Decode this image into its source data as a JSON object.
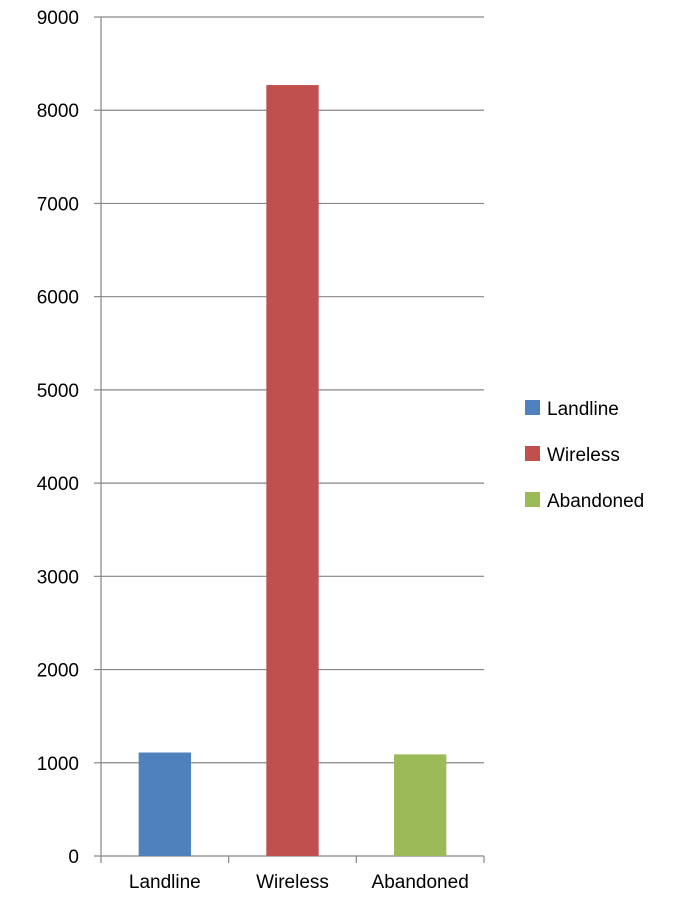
{
  "chart_data": {
    "type": "bar",
    "categories": [
      "Landline",
      "Wireless",
      "Abandoned"
    ],
    "values": [
      1110,
      8270,
      1090
    ],
    "colors": [
      "#4F81BD",
      "#C0504D",
      "#9BBB59"
    ],
    "ylim": [
      0,
      9000
    ],
    "yticks": [
      0,
      1000,
      2000,
      3000,
      4000,
      5000,
      6000,
      7000,
      8000,
      9000
    ],
    "grid": true,
    "legend_position": "right",
    "legend": [
      {
        "label": "Landline",
        "color": "#4F81BD"
      },
      {
        "label": "Wireless",
        "color": "#C0504D"
      },
      {
        "label": "Abandoned",
        "color": "#9BBB59"
      }
    ]
  }
}
